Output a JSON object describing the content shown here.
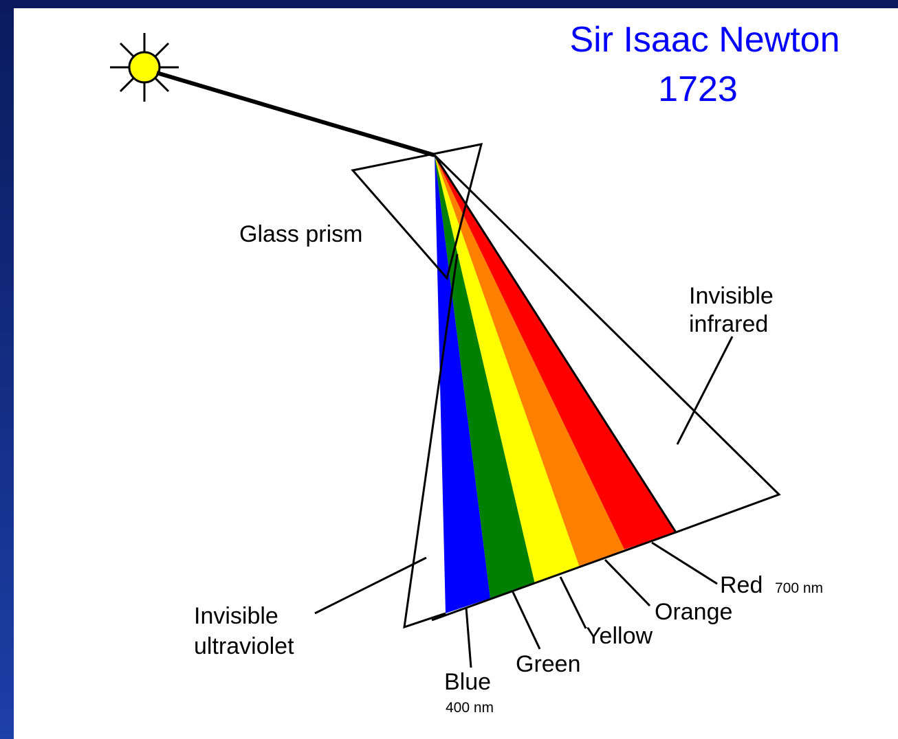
{
  "title": {
    "line1": "Sir Isaac Newton",
    "line2": "1723"
  },
  "labels": {
    "prism": "Glass prism",
    "infrared": {
      "line1": "Invisible",
      "line2": "infrared"
    },
    "ultraviolet": {
      "line1": "Invisible",
      "line2": "ultraviolet"
    },
    "blue": {
      "name": "Blue",
      "wavelength": "400 nm"
    },
    "green": {
      "name": "Green"
    },
    "yellow": {
      "name": "Yellow"
    },
    "orange": {
      "name": "Orange"
    },
    "red": {
      "name": "Red",
      "wavelength": "700 nm"
    }
  }
}
